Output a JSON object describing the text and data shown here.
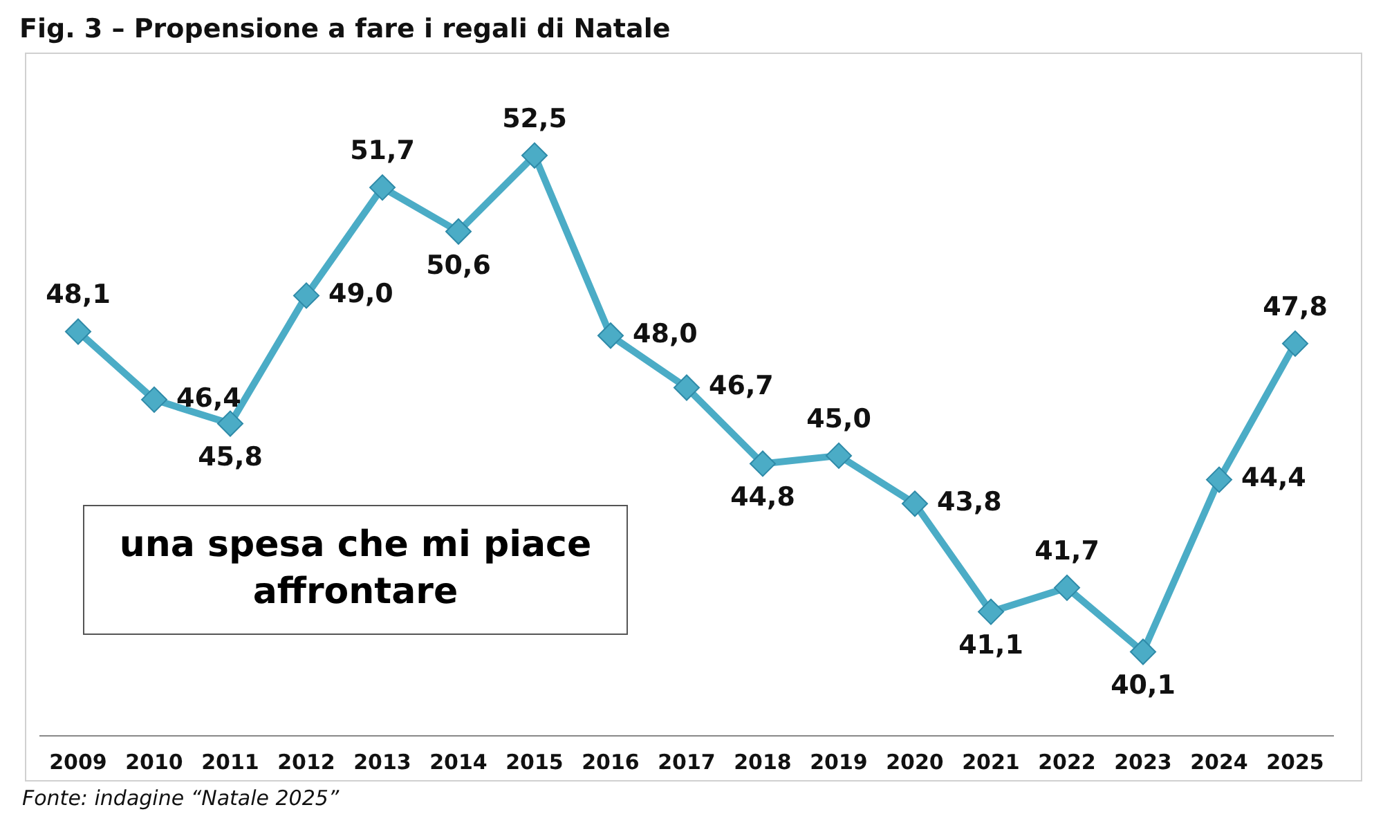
{
  "chart_data": {
    "type": "line",
    "title": "Fig. 3 – Propensione a fare i regali di Natale",
    "categories": [
      "2009",
      "2010",
      "2011",
      "2012",
      "2013",
      "2014",
      "2015",
      "2016",
      "2017",
      "2018",
      "2019",
      "2020",
      "2021",
      "2022",
      "2023",
      "2024",
      "2025"
    ],
    "series": [
      {
        "color": "#4bacc6",
        "values": [
          48.1,
          46.4,
          45.8,
          49.0,
          51.7,
          50.6,
          52.5,
          48.0,
          46.7,
          44.8,
          45.0,
          43.8,
          41.1,
          41.7,
          40.1,
          44.4,
          47.8
        ],
        "value_labels": [
          "48,1",
          "46,4",
          "45,8",
          "49,0",
          "51,7",
          "50,6",
          "52,5",
          "48,0",
          "46,7",
          "44,8",
          "45,0",
          "43,8",
          "41,1",
          "41,7",
          "40,1",
          "44,4",
          "47,8"
        ]
      }
    ],
    "marker": "diamond",
    "line_style": "solid",
    "grid": false,
    "legend": false,
    "tick_labels": "x",
    "annotations": [
      "una spesa che mi piace affrontare",
      "Fonte: indagine “Natale 2025”"
    ]
  }
}
